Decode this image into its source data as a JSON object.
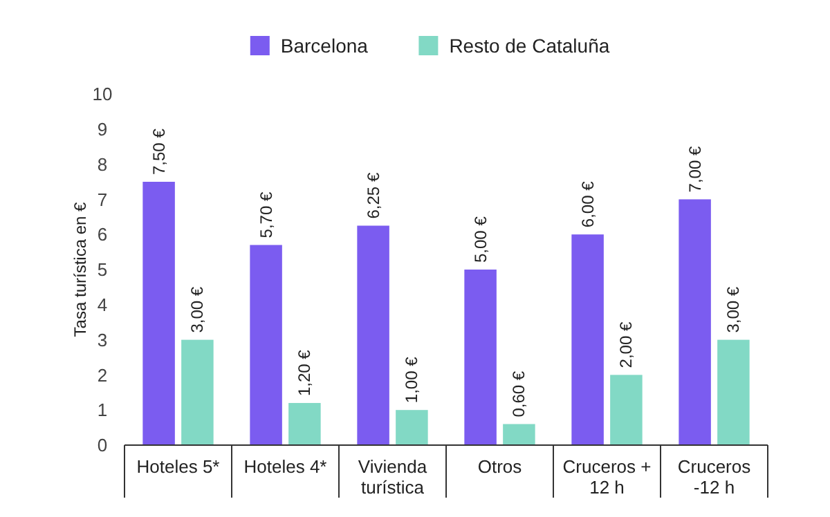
{
  "chart_data": {
    "type": "bar",
    "ylabel": "Tasa turística en €",
    "categories": [
      "Hoteles 5*",
      "Hoteles 4*",
      "Vivienda turística",
      "Otros",
      "Cruceros + 12 h",
      "Cruceros -12 h"
    ],
    "series": [
      {
        "name": "Barcelona",
        "color": "#7b5cf0",
        "values": [
          7.5,
          5.7,
          6.25,
          5,
          6,
          7
        ],
        "value_labels": [
          "7,50 €",
          "5,70 €",
          "6,25 €",
          "5,00 €",
          "6,00 €",
          "7,00 €"
        ]
      },
      {
        "name": "Resto de Cataluña",
        "color": "#82d9c5",
        "values": [
          3,
          1.2,
          1,
          0.6,
          2,
          3
        ],
        "value_labels": [
          "3,00 €",
          "1,20 €",
          "1,00 €",
          "0,60 €",
          "2,00 €",
          "3,00 €"
        ]
      }
    ],
    "ylim": [
      0,
      10
    ],
    "yticks": [
      0,
      1,
      2,
      3,
      4,
      5,
      6,
      7,
      8,
      9,
      10
    ],
    "legend": "top",
    "grid": false
  }
}
